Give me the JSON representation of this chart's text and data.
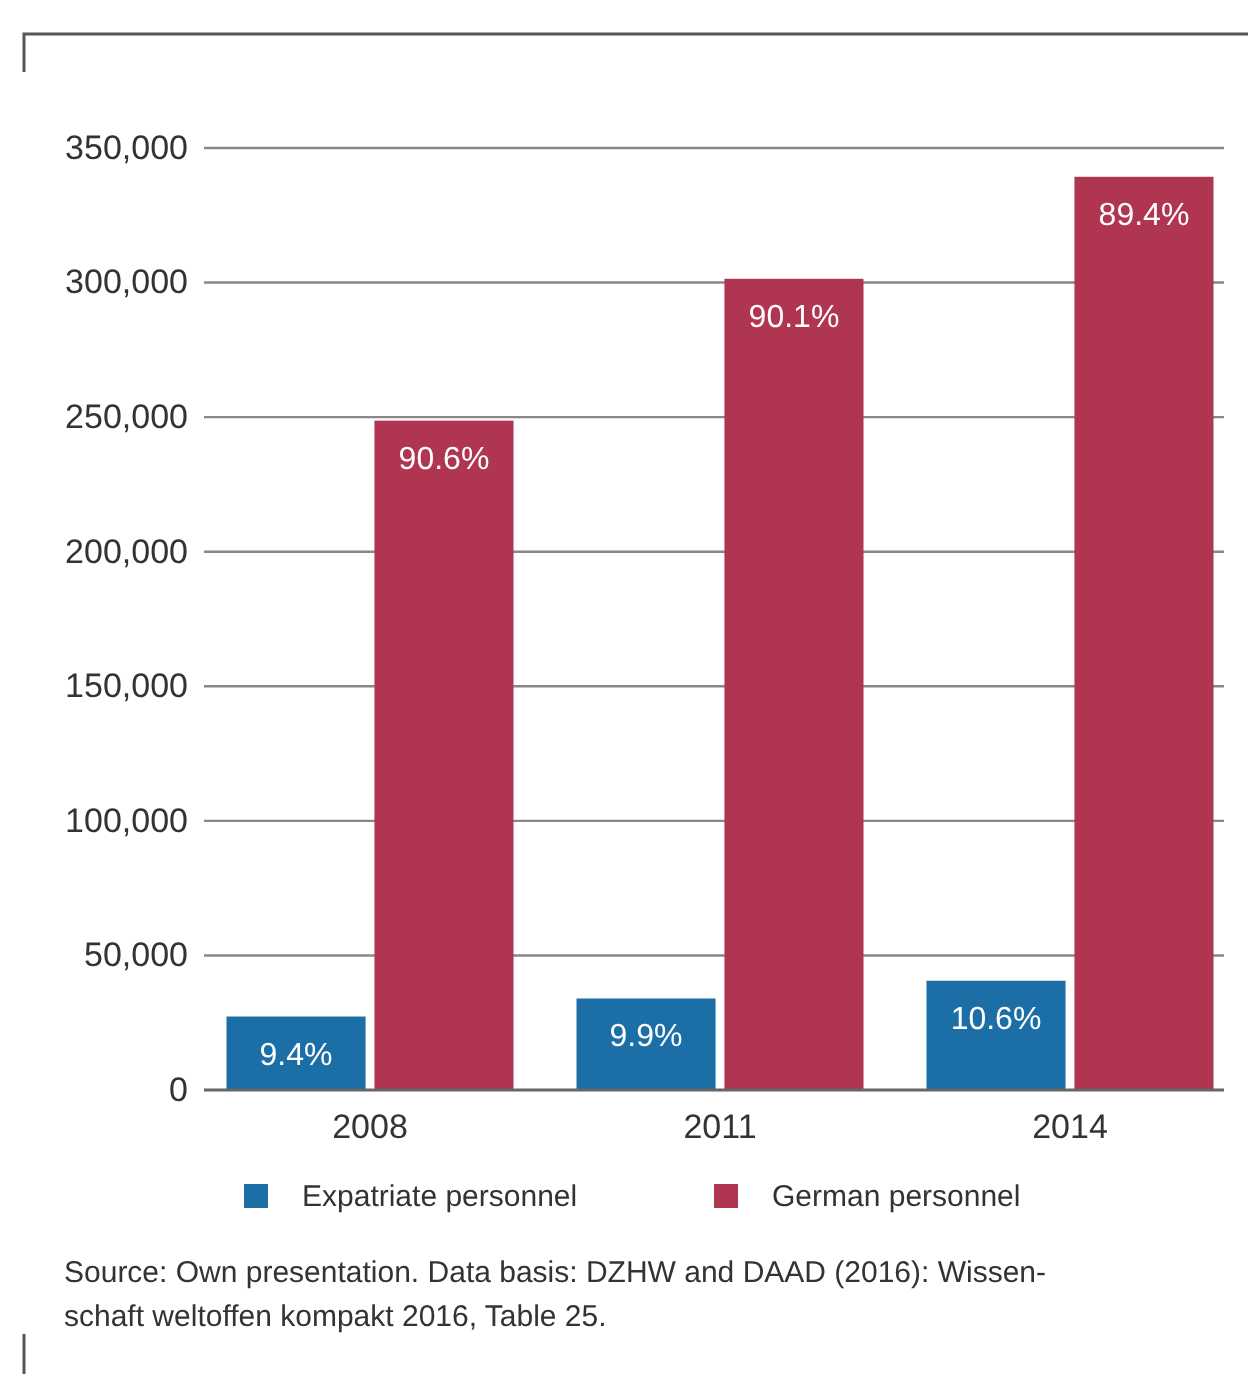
{
  "chart_data": {
    "type": "bar",
    "categories": [
      "2008",
      "2011",
      "2014"
    ],
    "series": [
      {
        "name": "Expatriate personnel",
        "color": "#1b6fa6",
        "values": [
          27300,
          34000,
          40600
        ]
      },
      {
        "name": "German personnel",
        "color": "#b03550",
        "values": [
          248700,
          301400,
          339300
        ]
      }
    ],
    "ylim": [
      0,
      350000
    ],
    "yticks": [
      {
        "value": 0,
        "label": "0"
      },
      {
        "value": 50000,
        "label": "50,000"
      },
      {
        "value": 100000,
        "label": "100,000"
      },
      {
        "value": 150000,
        "label": "150,000"
      },
      {
        "value": 200000,
        "label": "200,000"
      },
      {
        "value": 250000,
        "label": "250,000"
      },
      {
        "value": 300000,
        "label": "300,000"
      },
      {
        "value": 350000,
        "label": "350,000"
      }
    ],
    "grid": "y",
    "legend": "bottom",
    "annotations": [
      {
        "text": "9.4%",
        "x": "2008",
        "y": 27300
      },
      {
        "text": "9.9%",
        "x": "2011",
        "y": 34000
      },
      {
        "text": "10.6%",
        "x": "2014",
        "y": 40600
      },
      {
        "text": "90.6%",
        "x": "2008",
        "y": 248700
      },
      {
        "text": "90.1%",
        "x": "2011",
        "y": 301400
      },
      {
        "text": "89.4%",
        "x": "2014",
        "y": 339300
      },
      "Source: Own presentation. Data basis: DZHW and DAAD (2016): Wissen-\nschaft weltoffen kompakt 2016, Table 25."
    ]
  }
}
